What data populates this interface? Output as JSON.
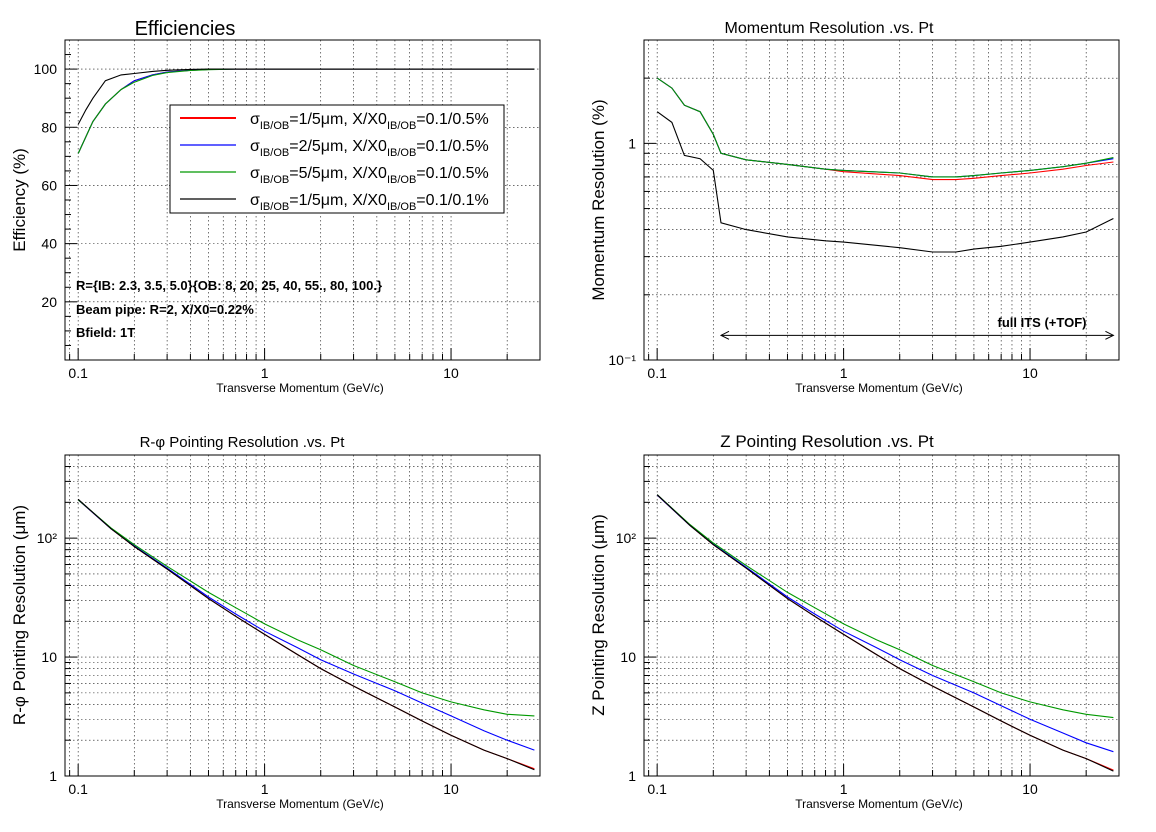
{
  "colors": {
    "red": "#ff0000",
    "blue": "#0000ff",
    "green": "#009900",
    "black": "#000000",
    "olive": "#8a6a1a"
  },
  "legend": [
    {
      "color": "#ff0000",
      "s": "σ",
      "sub1": "IB/OB",
      "mid": "=1/5μm, X/X0",
      "sub2": "IB/OB",
      "tail": "=0.1/0.5%"
    },
    {
      "color": "#0000ff",
      "s": "σ",
      "sub1": "IB/OB",
      "mid": "=2/5μm, X/X0",
      "sub2": "IB/OB",
      "tail": "=0.1/0.5%"
    },
    {
      "color": "#009900",
      "s": "σ",
      "sub1": "IB/OB",
      "mid": "=5/5μm, X/X0",
      "sub2": "IB/OB",
      "tail": "=0.1/0.5%"
    },
    {
      "color": "#000000",
      "s": "σ",
      "sub1": "IB/OB",
      "mid": "=1/5μm, X/X0",
      "sub2": "IB/OB",
      "tail": "=0.1/0.1%"
    }
  ],
  "annotations": {
    "radii": "R={IB: 2.3, 3.5, 5.0}{OB: 8, 20, 25, 40, 55., 80, 100.}",
    "beampipe": "Beam pipe: R=2, X/X0=0.22%",
    "bfield": "Bfield: 1T",
    "full_its": "full ITS (+TOF)"
  },
  "chart_data": [
    {
      "type": "line",
      "title": "Efficiencies",
      "xlabel": "Transverse Momentum (GeV/c)",
      "ylabel": "Efficiency (%)",
      "xscale": "log",
      "yscale": "linear",
      "xlim": [
        0.085,
        30
      ],
      "ylim": [
        0,
        110
      ],
      "xticks": [
        {
          "v": 0.1,
          "label": "0.1"
        },
        {
          "v": 1,
          "label": "1"
        },
        {
          "v": 10,
          "label": "10"
        }
      ],
      "yticks": [
        {
          "v": 20,
          "label": "20"
        },
        {
          "v": 40,
          "label": "40"
        },
        {
          "v": 60,
          "label": "60"
        },
        {
          "v": 80,
          "label": "80"
        },
        {
          "v": 100,
          "label": "100"
        }
      ],
      "grid": true,
      "series": [
        {
          "color": "#ff0000",
          "x": [
            0.1,
            0.12,
            0.14,
            0.17,
            0.2,
            0.25,
            0.3,
            0.4,
            0.5,
            0.7,
            1,
            2,
            5,
            10,
            20,
            28
          ],
          "y": [
            71,
            82,
            88,
            93,
            96,
            98,
            99,
            99.6,
            99.9,
            100,
            100,
            100,
            100,
            100,
            100,
            100
          ]
        },
        {
          "color": "#0000ff",
          "x": [
            0.1,
            0.12,
            0.14,
            0.17,
            0.2,
            0.25,
            0.3,
            0.4,
            0.5,
            0.7,
            1,
            2,
            5,
            10,
            20,
            28
          ],
          "y": [
            71,
            82,
            88,
            93,
            96,
            98,
            99,
            99.6,
            99.9,
            100,
            100,
            100,
            100,
            100,
            100,
            100
          ]
        },
        {
          "color": "#009900",
          "x": [
            0.1,
            0.12,
            0.14,
            0.17,
            0.2,
            0.25,
            0.3,
            0.4,
            0.5,
            0.7,
            1,
            2,
            5,
            10,
            20,
            28
          ],
          "y": [
            71,
            82,
            88,
            93,
            95.5,
            97.8,
            98.8,
            99.5,
            99.8,
            100,
            100,
            100,
            100,
            100,
            100,
            100
          ]
        },
        {
          "color": "#000000",
          "x": [
            0.1,
            0.11,
            0.12,
            0.14,
            0.17,
            0.2,
            0.25,
            0.3,
            0.4,
            0.5,
            0.7,
            1,
            2,
            5,
            10,
            20,
            28
          ],
          "y": [
            81,
            86,
            90,
            96,
            98,
            98.5,
            99.2,
            99.6,
            99.9,
            100,
            100,
            100,
            100,
            100,
            100,
            100,
            100
          ]
        }
      ]
    },
    {
      "type": "line",
      "title": "Momentum Resolution .vs. Pt",
      "xlabel": "Transverse Momentum (GeV/c)",
      "ylabel": "Momentum Resolution (%)",
      "xscale": "log",
      "yscale": "log",
      "xlim": [
        0.085,
        30
      ],
      "ylim": [
        0.1,
        3.0
      ],
      "xticks": [
        {
          "v": 0.1,
          "label": "0.1"
        },
        {
          "v": 1,
          "label": "1"
        },
        {
          "v": 10,
          "label": "10"
        }
      ],
      "yticks": [
        {
          "v": 0.1,
          "label": "10⁻¹"
        },
        {
          "v": 1,
          "label": "1"
        }
      ],
      "grid": true,
      "series": [
        {
          "color": "#ff0000",
          "x": [
            0.1,
            0.12,
            0.14,
            0.17,
            0.2,
            0.22,
            0.3,
            0.5,
            0.8,
            1,
            2,
            3,
            4,
            5,
            7,
            10,
            15,
            20,
            28
          ],
          "y": [
            2.0,
            1.8,
            1.5,
            1.4,
            1.1,
            0.9,
            0.84,
            0.8,
            0.76,
            0.74,
            0.71,
            0.68,
            0.68,
            0.69,
            0.71,
            0.73,
            0.76,
            0.79,
            0.82
          ]
        },
        {
          "color": "#0000ff",
          "x": [
            0.1,
            0.12,
            0.14,
            0.17,
            0.2,
            0.22,
            0.3,
            0.5,
            0.8,
            1,
            2,
            3,
            4,
            5,
            7,
            10,
            15,
            20,
            28
          ],
          "y": [
            2.0,
            1.8,
            1.5,
            1.4,
            1.1,
            0.9,
            0.84,
            0.8,
            0.76,
            0.75,
            0.73,
            0.7,
            0.7,
            0.71,
            0.73,
            0.75,
            0.78,
            0.81,
            0.85
          ]
        },
        {
          "color": "#009900",
          "x": [
            0.1,
            0.12,
            0.14,
            0.17,
            0.2,
            0.22,
            0.3,
            0.5,
            0.8,
            1,
            2,
            3,
            4,
            5,
            7,
            10,
            15,
            20,
            28
          ],
          "y": [
            2.0,
            1.8,
            1.5,
            1.4,
            1.1,
            0.9,
            0.84,
            0.8,
            0.76,
            0.75,
            0.73,
            0.7,
            0.7,
            0.71,
            0.73,
            0.75,
            0.78,
            0.81,
            0.86
          ]
        },
        {
          "color": "#000000",
          "x": [
            0.1,
            0.12,
            0.14,
            0.17,
            0.2,
            0.22,
            0.3,
            0.5,
            0.8,
            1,
            2,
            3,
            4,
            5,
            7,
            10,
            15,
            20,
            28
          ],
          "y": [
            1.4,
            1.25,
            0.88,
            0.85,
            0.75,
            0.43,
            0.4,
            0.37,
            0.355,
            0.35,
            0.33,
            0.315,
            0.315,
            0.325,
            0.335,
            0.35,
            0.37,
            0.39,
            0.45
          ]
        }
      ],
      "arrow": {
        "x1": 0.22,
        "x2": 28,
        "y": 0.13
      }
    },
    {
      "type": "line",
      "title": "R-φ Pointing Resolution .vs. Pt",
      "xlabel": "Transverse Momentum (GeV/c)",
      "ylabel": "R-φ Pointing Resolution (μm)",
      "xscale": "log",
      "yscale": "log",
      "xlim": [
        0.085,
        30
      ],
      "ylim": [
        1,
        500
      ],
      "xticks": [
        {
          "v": 0.1,
          "label": "0.1"
        },
        {
          "v": 1,
          "label": "1"
        },
        {
          "v": 10,
          "label": "10"
        }
      ],
      "yticks": [
        {
          "v": 1,
          "label": "1"
        },
        {
          "v": 10,
          "label": "10"
        },
        {
          "v": 100,
          "label": "10²"
        }
      ],
      "grid": true,
      "series": [
        {
          "color": "#ff0000",
          "x": [
            0.1,
            0.15,
            0.2,
            0.3,
            0.5,
            0.7,
            1,
            1.5,
            2,
            3,
            5,
            7,
            10,
            15,
            20,
            28
          ],
          "y": [
            210,
            120,
            85,
            55,
            31,
            22,
            15.5,
            10.5,
            8,
            5.7,
            3.8,
            2.9,
            2.2,
            1.65,
            1.4,
            1.15
          ]
        },
        {
          "color": "#0000ff",
          "x": [
            0.1,
            0.15,
            0.2,
            0.3,
            0.5,
            0.7,
            1,
            1.5,
            2,
            3,
            5,
            7,
            10,
            15,
            20,
            28
          ],
          "y": [
            210,
            120,
            86,
            56,
            32,
            23,
            16.5,
            12,
            9.5,
            7.2,
            5.2,
            4.1,
            3.2,
            2.4,
            2.0,
            1.65
          ]
        },
        {
          "color": "#009900",
          "x": [
            0.1,
            0.15,
            0.2,
            0.3,
            0.5,
            0.7,
            1,
            1.5,
            2,
            3,
            5,
            7,
            10,
            15,
            20,
            28
          ],
          "y": [
            210,
            122,
            88,
            58,
            35,
            26,
            19,
            14,
            11.5,
            8.5,
            6.2,
            5.0,
            4.2,
            3.6,
            3.3,
            3.2
          ]
        },
        {
          "color": "#000000",
          "x": [
            0.1,
            0.15,
            0.2,
            0.3,
            0.5,
            0.7,
            1,
            1.5,
            2,
            3,
            5,
            7,
            10,
            15,
            20,
            28
          ],
          "y": [
            212,
            120,
            85,
            55,
            31,
            22,
            15.5,
            10.5,
            8,
            5.7,
            3.8,
            2.9,
            2.2,
            1.65,
            1.4,
            1.13
          ]
        }
      ]
    },
    {
      "type": "line",
      "title": "Z Pointing Resolution .vs. Pt",
      "xlabel": "Transverse Momentum (GeV/c)",
      "ylabel": "Z Pointing Resolution (μm)",
      "xscale": "log",
      "yscale": "log",
      "xlim": [
        0.085,
        30
      ],
      "ylim": [
        1,
        500
      ],
      "xticks": [
        {
          "v": 0.1,
          "label": "0.1"
        },
        {
          "v": 1,
          "label": "1"
        },
        {
          "v": 10,
          "label": "10"
        }
      ],
      "yticks": [
        {
          "v": 1,
          "label": "1"
        },
        {
          "v": 10,
          "label": "10"
        },
        {
          "v": 100,
          "label": "10²"
        }
      ],
      "grid": true,
      "series": [
        {
          "color": "#ff0000",
          "x": [
            0.1,
            0.15,
            0.2,
            0.3,
            0.5,
            0.7,
            1,
            1.5,
            2,
            3,
            5,
            7,
            10,
            15,
            20,
            28
          ],
          "y": [
            230,
            128,
            88,
            56,
            31,
            22,
            15.5,
            10.5,
            8,
            5.7,
            3.8,
            2.9,
            2.2,
            1.65,
            1.4,
            1.12
          ]
        },
        {
          "color": "#0000ff",
          "x": [
            0.1,
            0.15,
            0.2,
            0.3,
            0.5,
            0.7,
            1,
            1.5,
            2,
            3,
            5,
            7,
            10,
            15,
            20,
            28
          ],
          "y": [
            230,
            128,
            89,
            57,
            32,
            23,
            16.5,
            12,
            9.5,
            7.0,
            5.0,
            3.9,
            3.0,
            2.3,
            1.9,
            1.6
          ]
        },
        {
          "color": "#009900",
          "x": [
            0.1,
            0.15,
            0.2,
            0.3,
            0.5,
            0.7,
            1,
            1.5,
            2,
            3,
            5,
            7,
            10,
            15,
            20,
            28
          ],
          "y": [
            232,
            130,
            91,
            59,
            35,
            26,
            19,
            14,
            11.5,
            8.5,
            6.2,
            5.0,
            4.2,
            3.6,
            3.3,
            3.1
          ]
        },
        {
          "color": "#000000",
          "x": [
            0.1,
            0.15,
            0.2,
            0.3,
            0.5,
            0.7,
            1,
            1.5,
            2,
            3,
            5,
            7,
            10,
            15,
            20,
            28
          ],
          "y": [
            232,
            128,
            88,
            56,
            31,
            22,
            15.5,
            10.5,
            8,
            5.7,
            3.8,
            2.9,
            2.2,
            1.65,
            1.4,
            1.1
          ]
        }
      ]
    }
  ]
}
